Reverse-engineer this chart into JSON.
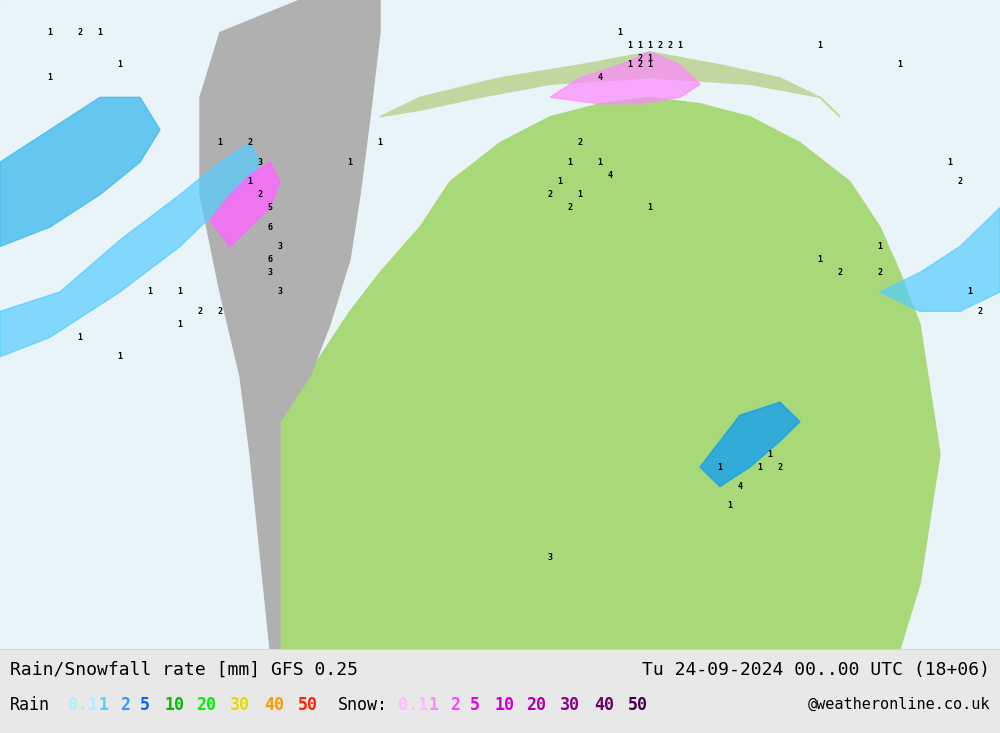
{
  "title_left": "Rain/Snowfall rate [mm] GFS 0.25",
  "title_right": "Tu 24-09-2024 00..00 UTC (18+06)",
  "credit": "@weatheronline.co.uk",
  "legend_label": "Rain",
  "legend_label2": "Snow:",
  "rain_values": [
    "0.1",
    "1",
    "2",
    "5",
    "10",
    "20",
    "30",
    "40",
    "50"
  ],
  "snow_values": [
    "0.1",
    "1",
    "2",
    "5",
    "10",
    "20",
    "30",
    "40",
    "50"
  ],
  "rain_colors": [
    "#99ffff",
    "#00ccff",
    "#0099ff",
    "#0000ff",
    "#00cc00",
    "#00ff00",
    "#ffff00",
    "#ff9900",
    "#ff0000"
  ],
  "snow_colors": [
    "#ffccff",
    "#ff99ff",
    "#ff66ff",
    "#ff00ff",
    "#cc00cc",
    "#990099",
    "#660066",
    "#440044",
    "#220022"
  ],
  "bg_color": "#e8e8e8",
  "map_bg": "#f0f0f0",
  "label_color_rain_01": "#99ffff",
  "label_color_rain_1": "#00ccff",
  "label_color_rain_25": "#0099ff",
  "label_color_rain_high": "#0000cc",
  "label_color_snow_01": "#ffccff",
  "label_color_snow_1": "#ff99ff",
  "label_color_snow_2": "#ff66ff",
  "label_color_snow_5": "#ff00ff",
  "label_color_snow_high": "#cc00cc"
}
